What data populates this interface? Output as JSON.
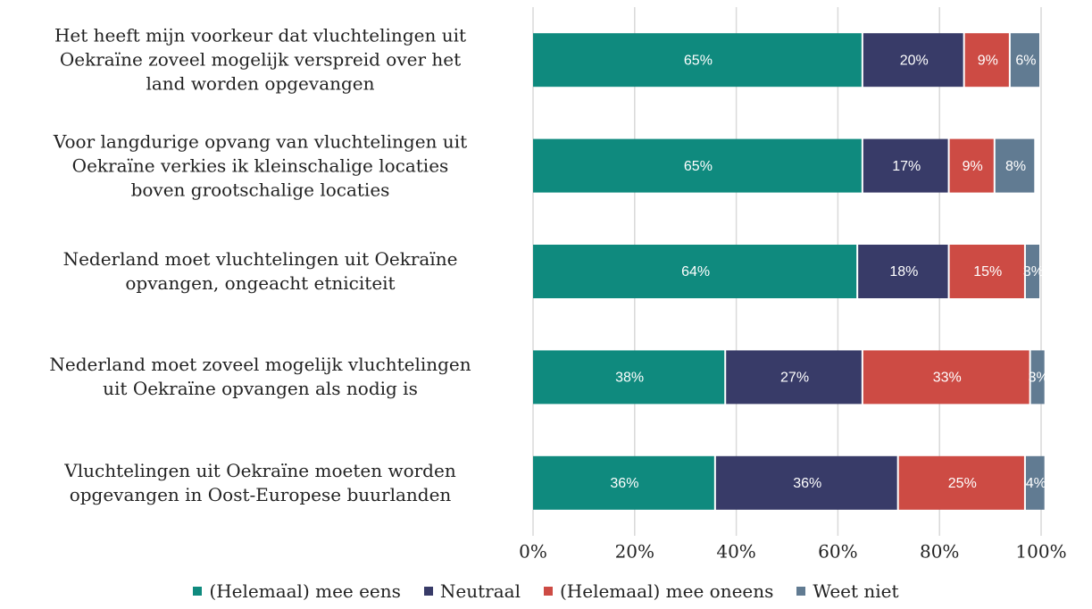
{
  "chart_data": {
    "type": "stacked-bar-horizontal",
    "categories": [
      [
        "Het heeft mijn voorkeur dat vluchtelingen uit",
        "Oekraïne zoveel mogelijk verspreid over het",
        "land worden opgevangen"
      ],
      [
        "Voor langdurige opvang van vluchtelingen uit",
        "Oekraïne verkies ik kleinschalige locaties",
        "boven grootschalige locaties"
      ],
      [
        "Nederland moet vluchtelingen uit Oekraïne",
        "opvangen, ongeacht etniciteit"
      ],
      [
        "Nederland moet zoveel mogelijk vluchtelingen",
        "uit Oekraïne opvangen als nodig is"
      ],
      [
        "Vluchtelingen uit Oekraïne moeten worden",
        "opgevangen in Oost-Europese buurlanden"
      ]
    ],
    "series": [
      {
        "name": "(Helemaal) mee eens",
        "color": "#0f8a7e",
        "values": [
          65,
          65,
          64,
          38,
          36
        ],
        "value_labels": [
          "65%",
          "65%",
          "64%",
          "38%",
          "36%"
        ]
      },
      {
        "name": "Neutraal",
        "color": "#383b68",
        "values": [
          20,
          17,
          18,
          27,
          36
        ],
        "value_labels": [
          "20%",
          "17%",
          "18%",
          "27%",
          "36%"
        ]
      },
      {
        "name": "(Helemaal) mee oneens",
        "color": "#cd4b44",
        "values": [
          9,
          9,
          15,
          33,
          25
        ],
        "value_labels": [
          "9%",
          "9%",
          "15%",
          "33%",
          "25%"
        ]
      },
      {
        "name": "Weet niet",
        "color": "#617b92",
        "values": [
          6,
          8,
          3,
          3,
          4
        ],
        "value_labels": [
          "6%",
          "8%",
          "3%",
          "3%",
          "4%"
        ]
      }
    ],
    "xlim": [
      0,
      100
    ],
    "xticks": [
      {
        "value": 0,
        "label": "0%"
      },
      {
        "value": 20,
        "label": "20%"
      },
      {
        "value": 40,
        "label": "40%"
      },
      {
        "value": 60,
        "label": "60%"
      },
      {
        "value": 80,
        "label": "80%"
      },
      {
        "value": 100,
        "label": "100%"
      }
    ],
    "grid": true,
    "legend": "bottom"
  }
}
